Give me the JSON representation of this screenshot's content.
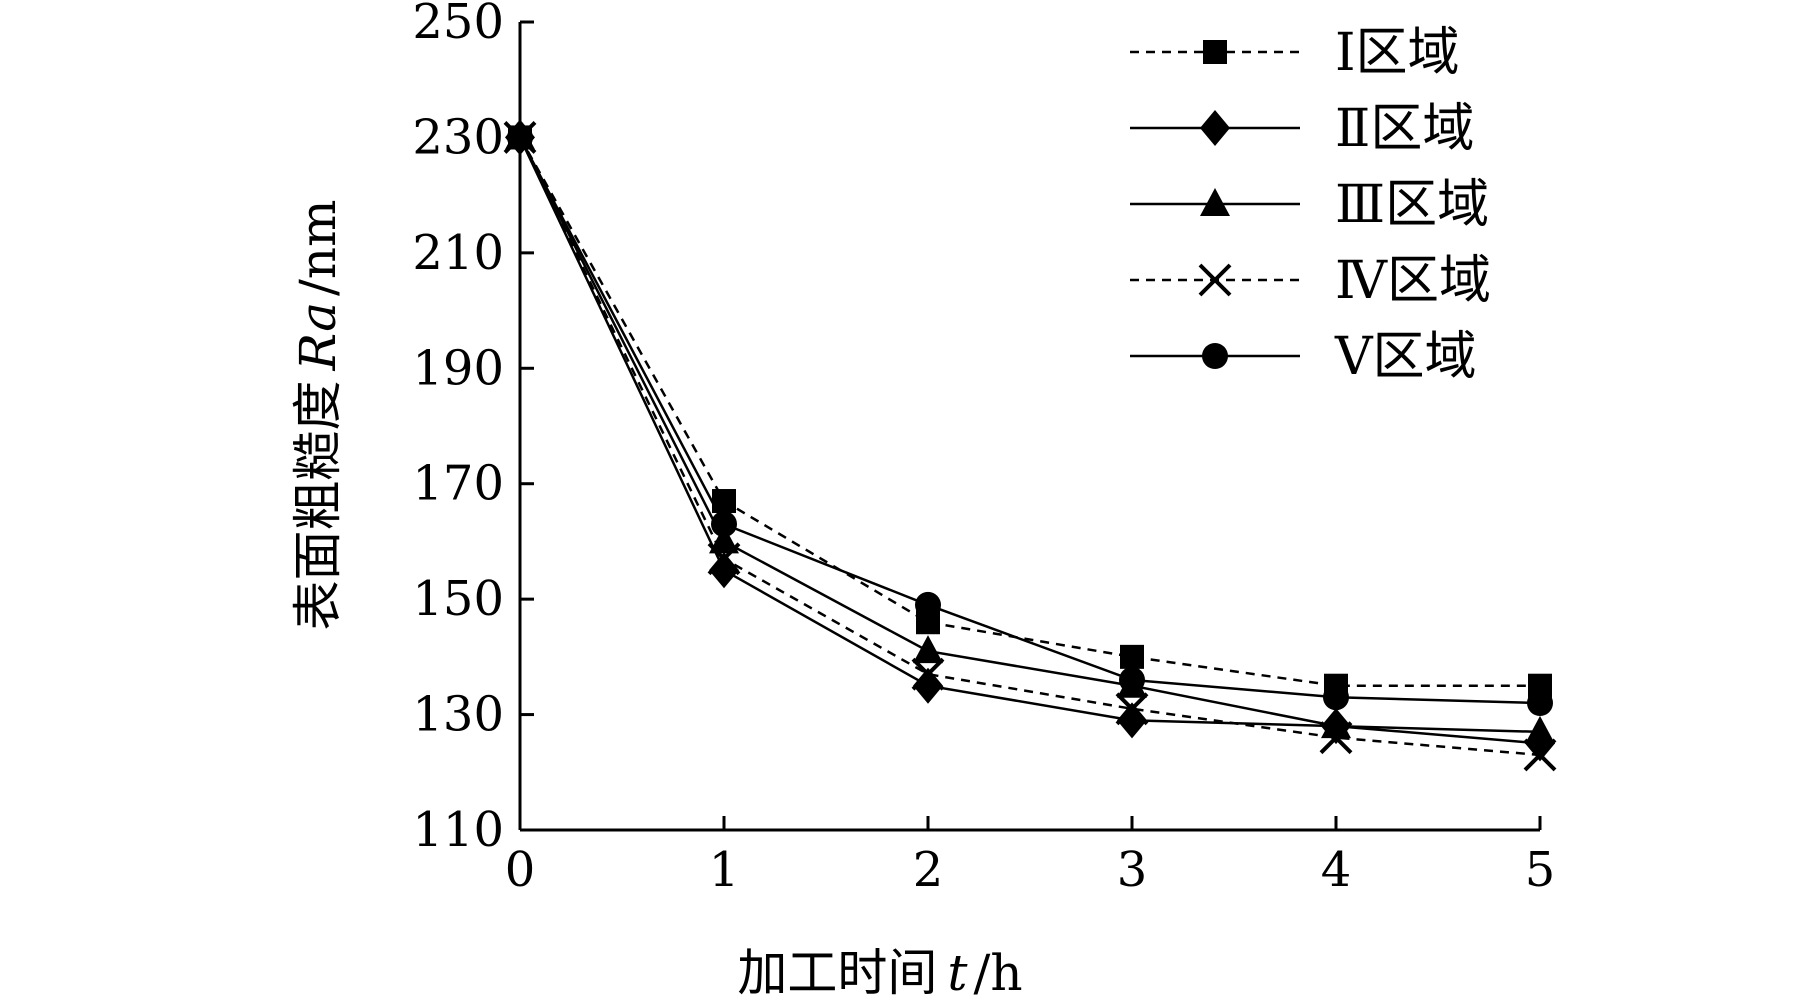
{
  "chart_data": {
    "type": "line",
    "x": [
      0,
      1,
      2,
      3,
      4,
      5
    ],
    "xlabel": "加工时间",
    "xlabel_var": "t",
    "xlabel_unit": "/h",
    "ylabel": "表面粗糙度",
    "ylabel_var": "Ra",
    "ylabel_unit": "/nm",
    "xlim": [
      0,
      5
    ],
    "ylim": [
      110,
      250
    ],
    "x_ticks": [
      "0",
      "1",
      "2",
      "3",
      "4",
      "5"
    ],
    "y_ticks": [
      "110",
      "130",
      "150",
      "170",
      "190",
      "210",
      "230",
      "250"
    ],
    "grid": false,
    "legend_position": "top-right",
    "series": [
      {
        "name": "Ⅰ区域",
        "marker": "square",
        "dash": "dashed",
        "values": [
          230,
          167,
          146,
          140,
          135,
          135
        ]
      },
      {
        "name": "Ⅱ区域",
        "marker": "diamond",
        "dash": "solid",
        "values": [
          230,
          155,
          135,
          129,
          128,
          125
        ]
      },
      {
        "name": "Ⅲ区域",
        "marker": "triangle",
        "dash": "solid",
        "values": [
          230,
          160,
          141,
          135,
          128,
          127
        ]
      },
      {
        "name": "Ⅳ区域",
        "marker": "x",
        "dash": "dashed",
        "values": [
          230,
          157,
          137,
          131,
          126,
          123
        ]
      },
      {
        "name": "Ⅴ区域",
        "marker": "circle",
        "dash": "solid",
        "values": [
          230,
          163,
          149,
          136,
          133,
          132
        ]
      }
    ]
  }
}
